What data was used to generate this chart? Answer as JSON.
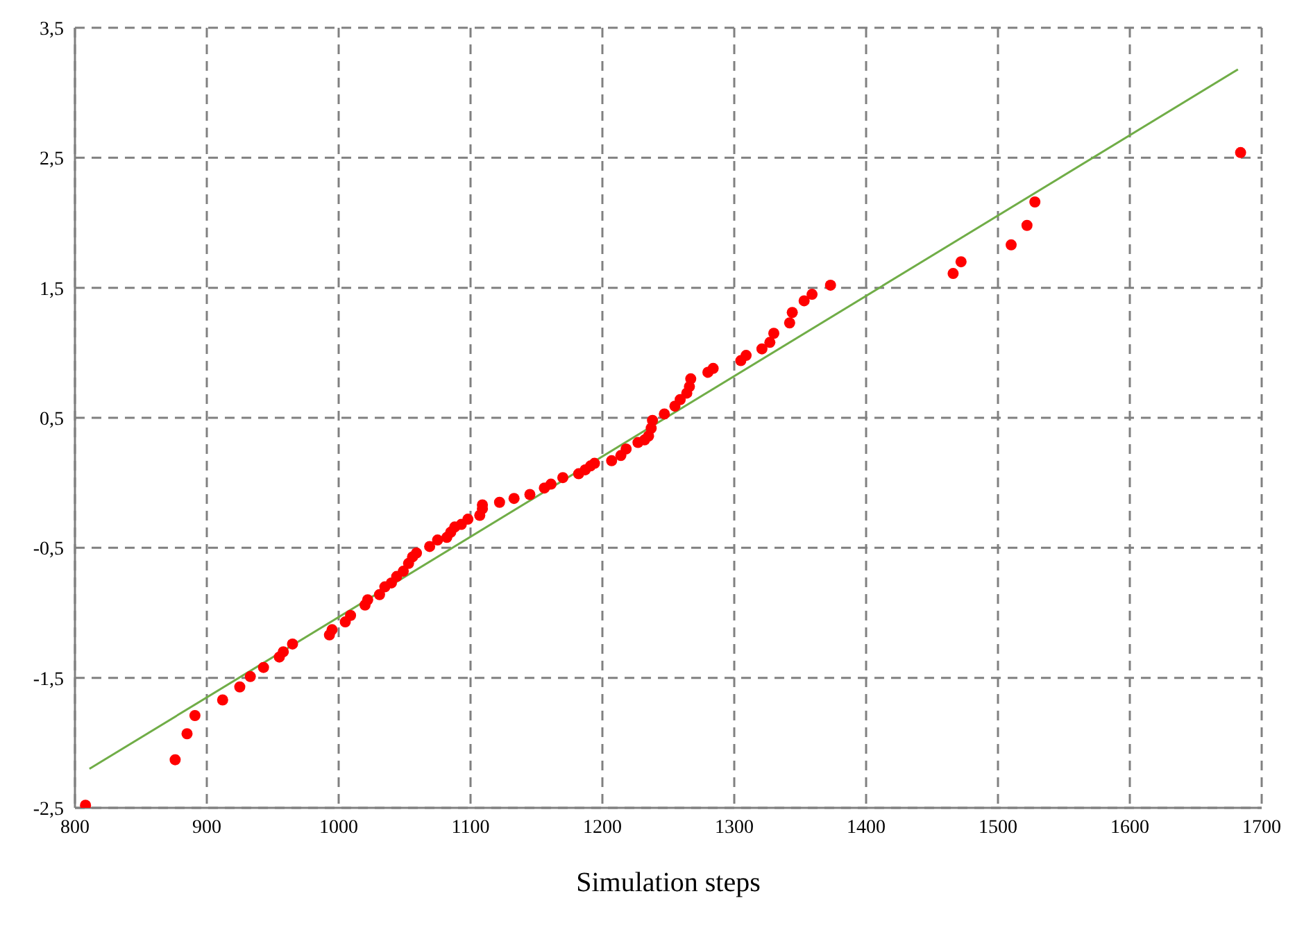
{
  "chart_data": {
    "type": "scatter",
    "xlabel": "Simulation steps",
    "xlim": [
      800,
      1700
    ],
    "xticks": [
      800,
      900,
      1000,
      1100,
      1200,
      1300,
      1400,
      1500,
      1600,
      1700
    ],
    "ylim": [
      -2.5,
      3.5
    ],
    "yticks": [
      {
        "value": -2.5,
        "label": "-2,5"
      },
      {
        "value": -1.5,
        "label": "-1,5"
      },
      {
        "value": -0.5,
        "label": "-0,5"
      },
      {
        "value": 0.5,
        "label": "0,5"
      },
      {
        "value": 1.5,
        "label": "1,5"
      },
      {
        "value": 2.5,
        "label": "2,5"
      },
      {
        "value": 3.5,
        "label": "3,5"
      }
    ],
    "grid": true,
    "marker": "circle",
    "series": [
      {
        "color": "#ff0000",
        "x": [
          808,
          876,
          885,
          891,
          912,
          925,
          933,
          943,
          955,
          958,
          965,
          993,
          995,
          1005,
          1009,
          1020,
          1022,
          1031,
          1035,
          1040,
          1044,
          1049,
          1053,
          1056,
          1059,
          1069,
          1075,
          1082,
          1085,
          1088,
          1093,
          1098,
          1107,
          1109,
          1109,
          1122,
          1133,
          1145,
          1156,
          1161,
          1170,
          1182,
          1187,
          1191,
          1194,
          1207,
          1214,
          1218,
          1227,
          1232,
          1235,
          1237,
          1238,
          1247,
          1255,
          1259,
          1264,
          1266,
          1267,
          1280,
          1284,
          1305,
          1309,
          1321,
          1327,
          1330,
          1342,
          1344,
          1353,
          1359,
          1373,
          1466,
          1472,
          1510,
          1522,
          1528,
          1684
        ],
        "values": [
          -2.48,
          -2.13,
          -1.93,
          -1.79,
          -1.67,
          -1.57,
          -1.49,
          -1.42,
          -1.34,
          -1.3,
          -1.24,
          -1.17,
          -1.13,
          -1.07,
          -1.02,
          -0.94,
          -0.9,
          -0.86,
          -0.8,
          -0.77,
          -0.72,
          -0.68,
          -0.62,
          -0.57,
          -0.54,
          -0.49,
          -0.44,
          -0.42,
          -0.38,
          -0.34,
          -0.32,
          -0.28,
          -0.25,
          -0.2,
          -0.17,
          -0.15,
          -0.12,
          -0.09,
          -0.04,
          -0.01,
          0.04,
          0.07,
          0.1,
          0.13,
          0.15,
          0.17,
          0.21,
          0.26,
          0.31,
          0.33,
          0.36,
          0.42,
          0.48,
          0.53,
          0.59,
          0.64,
          0.69,
          0.74,
          0.8,
          0.85,
          0.88,
          0.94,
          0.98,
          1.03,
          1.08,
          1.15,
          1.23,
          1.31,
          1.4,
          1.45,
          1.52,
          1.61,
          1.7,
          1.83,
          1.98,
          2.16,
          2.54
        ]
      },
      {
        "type": "line",
        "color": "#70ad47",
        "marker": "none",
        "x": [
          811,
          1682
        ],
        "values": [
          -2.2,
          3.18
        ]
      }
    ]
  }
}
